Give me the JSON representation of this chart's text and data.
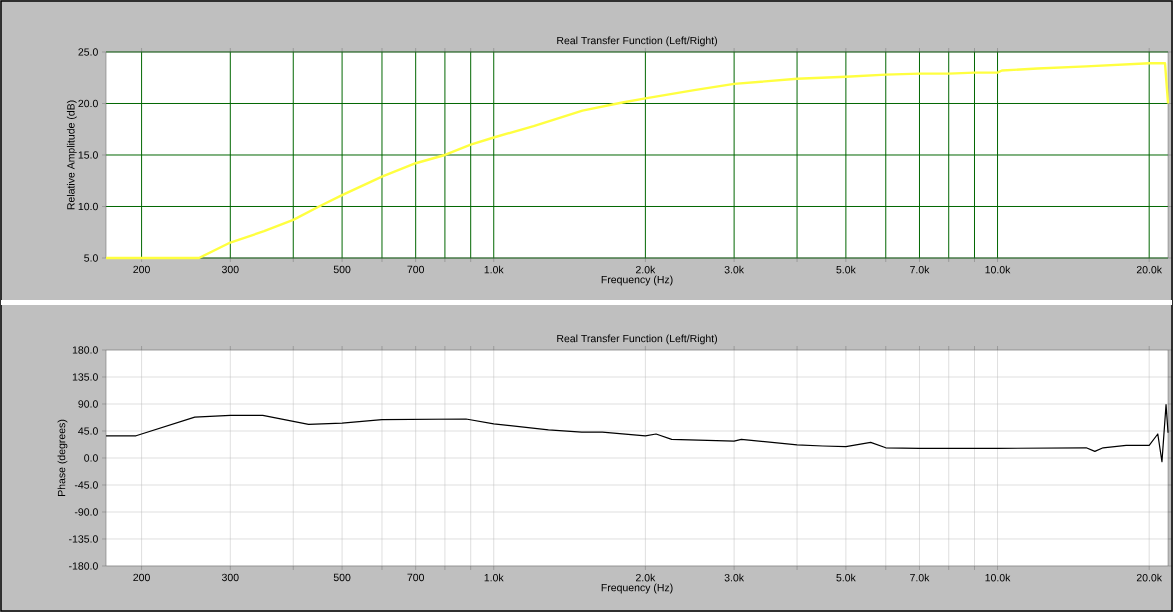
{
  "chart_data": [
    {
      "type": "line",
      "title": "Real Transfer Function (Left/Right)",
      "xlabel": "Frequency (Hz)",
      "ylabel": "Relative Amplitude (dB)",
      "log": "x",
      "grid": true,
      "xlim": [
        170,
        21800
      ],
      "ylim": [
        5,
        25
      ],
      "xticks": [
        200,
        300,
        {
          "value": 400,
          "label": null
        },
        500,
        {
          "value": 600,
          "label": null
        },
        700,
        {
          "value": 800,
          "label": null
        },
        {
          "value": 900,
          "label": null
        },
        {
          "value": 1000,
          "label": "1.0k"
        },
        {
          "value": 2000,
          "label": "2.0k"
        },
        {
          "value": 3000,
          "label": "3.0k"
        },
        {
          "value": 4000,
          "label": null
        },
        {
          "value": 5000,
          "label": "5.0k"
        },
        {
          "value": 6000,
          "label": null
        },
        {
          "value": 7000,
          "label": "7.0k"
        },
        {
          "value": 8000,
          "label": null
        },
        {
          "value": 9000,
          "label": null
        },
        {
          "value": 10000,
          "label": "10.0k"
        },
        {
          "value": 20000,
          "label": "20.0k"
        }
      ],
      "yticks": [
        {
          "value": 5,
          "label": "5.0"
        },
        {
          "value": 10,
          "label": "10.0"
        },
        {
          "value": 15,
          "label": "15.0"
        },
        {
          "value": 20,
          "label": "20.0"
        },
        {
          "value": 25,
          "label": "25.0"
        }
      ],
      "x": [
        170,
        200,
        260,
        300,
        350,
        400,
        450,
        500,
        600,
        700,
        800,
        900,
        1000,
        1200,
        1500,
        1800,
        2000,
        2500,
        3000,
        4000,
        5000,
        6000,
        7000,
        8000,
        9000,
        10000,
        10200,
        12000,
        15000,
        20000,
        21500,
        21800
      ],
      "series": [
        {
          "color": "#ffff40",
          "values": [
            5.0,
            5.0,
            5.0,
            6.5,
            7.6,
            8.7,
            10.0,
            11.1,
            12.9,
            14.2,
            15.0,
            16.0,
            16.7,
            17.8,
            19.3,
            20.1,
            20.5,
            21.3,
            21.9,
            22.4,
            22.6,
            22.8,
            22.9,
            22.9,
            23.0,
            23.0,
            23.2,
            23.4,
            23.6,
            23.9,
            23.9,
            20.0
          ]
        }
      ]
    },
    {
      "type": "line",
      "title": "Real Transfer Function (Left/Right)",
      "xlabel": "Frequency (Hz)",
      "ylabel": "Phase (degrees)",
      "log": "x",
      "grid": true,
      "xlim": [
        170,
        21800
      ],
      "ylim": [
        -180,
        180
      ],
      "xticks": [
        200,
        300,
        {
          "value": 400,
          "label": null
        },
        500,
        {
          "value": 600,
          "label": null
        },
        700,
        {
          "value": 800,
          "label": null
        },
        {
          "value": 900,
          "label": null
        },
        {
          "value": 1000,
          "label": "1.0k"
        },
        {
          "value": 2000,
          "label": "2.0k"
        },
        {
          "value": 3000,
          "label": "3.0k"
        },
        {
          "value": 4000,
          "label": null
        },
        {
          "value": 5000,
          "label": "5.0k"
        },
        {
          "value": 6000,
          "label": null
        },
        {
          "value": 7000,
          "label": "7.0k"
        },
        {
          "value": 8000,
          "label": null
        },
        {
          "value": 9000,
          "label": null
        },
        {
          "value": 10000,
          "label": "10.0k"
        },
        {
          "value": 20000,
          "label": "20.0k"
        }
      ],
      "yticks": [
        {
          "value": -180,
          "label": "-180.0"
        },
        {
          "value": -135,
          "label": "-135.0"
        },
        {
          "value": -90,
          "label": "-90.0"
        },
        {
          "value": -45,
          "label": "-45.0"
        },
        {
          "value": 0,
          "label": "0.0"
        },
        {
          "value": 45,
          "label": "45.0"
        },
        {
          "value": 90,
          "label": "90.0"
        },
        {
          "value": 135,
          "label": "135.0"
        },
        {
          "value": 180,
          "label": "180.0"
        }
      ],
      "x": [
        170,
        195,
        255,
        300,
        348,
        429,
        500,
        600,
        881,
        1000,
        1284,
        1495,
        1643,
        2000,
        2100,
        2255,
        3000,
        3100,
        4000,
        4500,
        5000,
        5600,
        6000,
        7000,
        10000,
        15000,
        15600,
        16200,
        18000,
        20000,
        20800,
        21200,
        21600,
        21800
      ],
      "series": [
        {
          "color": "#000000",
          "values": [
            37,
            37,
            68,
            71,
            71,
            56,
            58,
            64,
            65,
            57,
            47,
            43,
            43,
            37,
            40,
            31,
            28,
            31,
            22,
            20,
            19,
            26,
            17,
            16,
            16,
            17,
            11,
            17,
            21,
            21,
            40,
            -6,
            89,
            42
          ]
        }
      ]
    }
  ]
}
